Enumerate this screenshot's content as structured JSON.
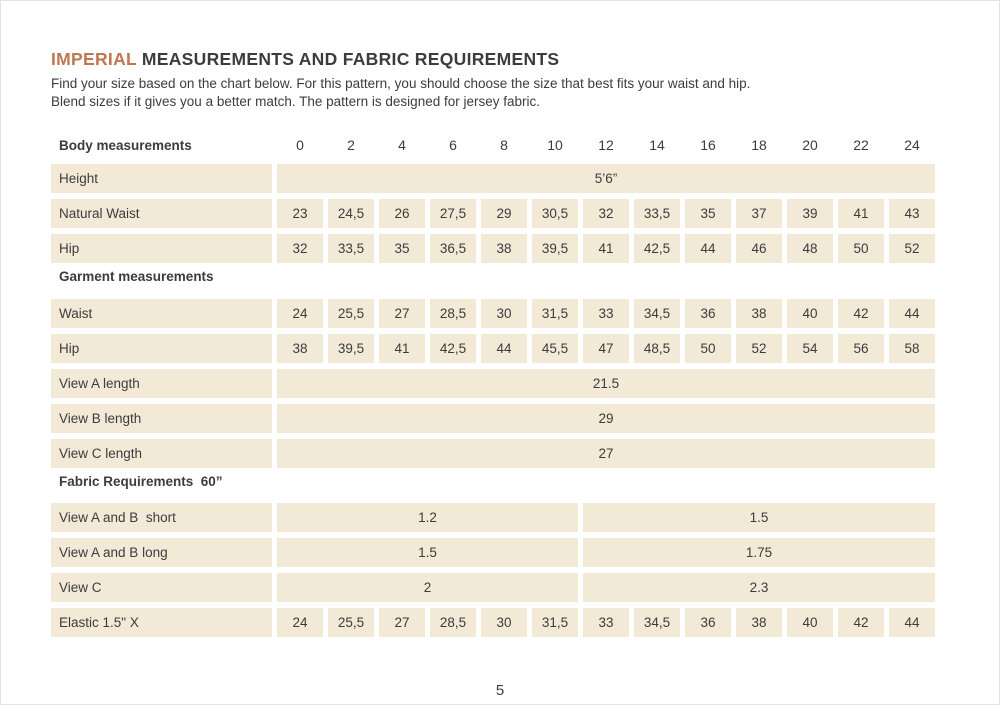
{
  "page": {
    "title_accent": "IMPERIAL",
    "title_rest": " MEASUREMENTS AND FABRIC REQUIREMENTS",
    "subtitle": "Find your size based on the chart below. For this pattern, you should choose the size that best fits your waist and hip.\nBlend sizes if it gives you a better match.  The pattern is designed for jersey fabric.",
    "page_number": "5"
  },
  "colors": {
    "accent": "#c0764f",
    "cell_background": "#f3e9d7",
    "text": "#3c3c3c"
  },
  "table": {
    "header_label": "Body measurements",
    "sizes": [
      "0",
      "2",
      "4",
      "6",
      "8",
      "10",
      "12",
      "14",
      "16",
      "18",
      "20",
      "22",
      "24"
    ],
    "rows": [
      {
        "type": "full",
        "label": "Height",
        "value": "5’6”"
      },
      {
        "type": "cells",
        "label": "Natural Waist",
        "values": [
          "23",
          "24,5",
          "26",
          "27,5",
          "29",
          "30,5",
          "32",
          "33,5",
          "35",
          "37",
          "39",
          "41",
          "43"
        ]
      },
      {
        "type": "cells",
        "label": "Hip",
        "values": [
          "32",
          "33,5",
          "35",
          "36,5",
          "38",
          "39,5",
          "41",
          "42,5",
          "44",
          "46",
          "48",
          "50",
          "52"
        ]
      },
      {
        "type": "section",
        "label": "Garment measurements",
        "class": "garment"
      },
      {
        "type": "cells",
        "label": "Waist",
        "values": [
          "24",
          "25,5",
          "27",
          "28,5",
          "30",
          "31,5",
          "33",
          "34,5",
          "36",
          "38",
          "40",
          "42",
          "44"
        ]
      },
      {
        "type": "cells",
        "label": "Hip",
        "values": [
          "38",
          "39,5",
          "41",
          "42,5",
          "44",
          "45,5",
          "47",
          "48,5",
          "50",
          "52",
          "54",
          "56",
          "58"
        ]
      },
      {
        "type": "full",
        "label": "View A length",
        "value": "21.5"
      },
      {
        "type": "full",
        "label": "View B length",
        "value": "29"
      },
      {
        "type": "full",
        "label": "View C length",
        "value": "27"
      },
      {
        "type": "section",
        "label": "Fabric Requirements  60”",
        "class": "fabric"
      },
      {
        "type": "halves",
        "label": "View A and B  short",
        "values": [
          "1.2",
          "1.5"
        ]
      },
      {
        "type": "halves",
        "label": "View A and B long",
        "values": [
          "1.5",
          "1.75"
        ]
      },
      {
        "type": "halves",
        "label": "View C",
        "values": [
          "2",
          "2.3"
        ]
      },
      {
        "type": "cells",
        "label": "Elastic 1.5\" X",
        "values": [
          "24",
          "25,5",
          "27",
          "28,5",
          "30",
          "31,5",
          "33",
          "34,5",
          "36",
          "38",
          "40",
          "42",
          "44"
        ]
      }
    ]
  }
}
